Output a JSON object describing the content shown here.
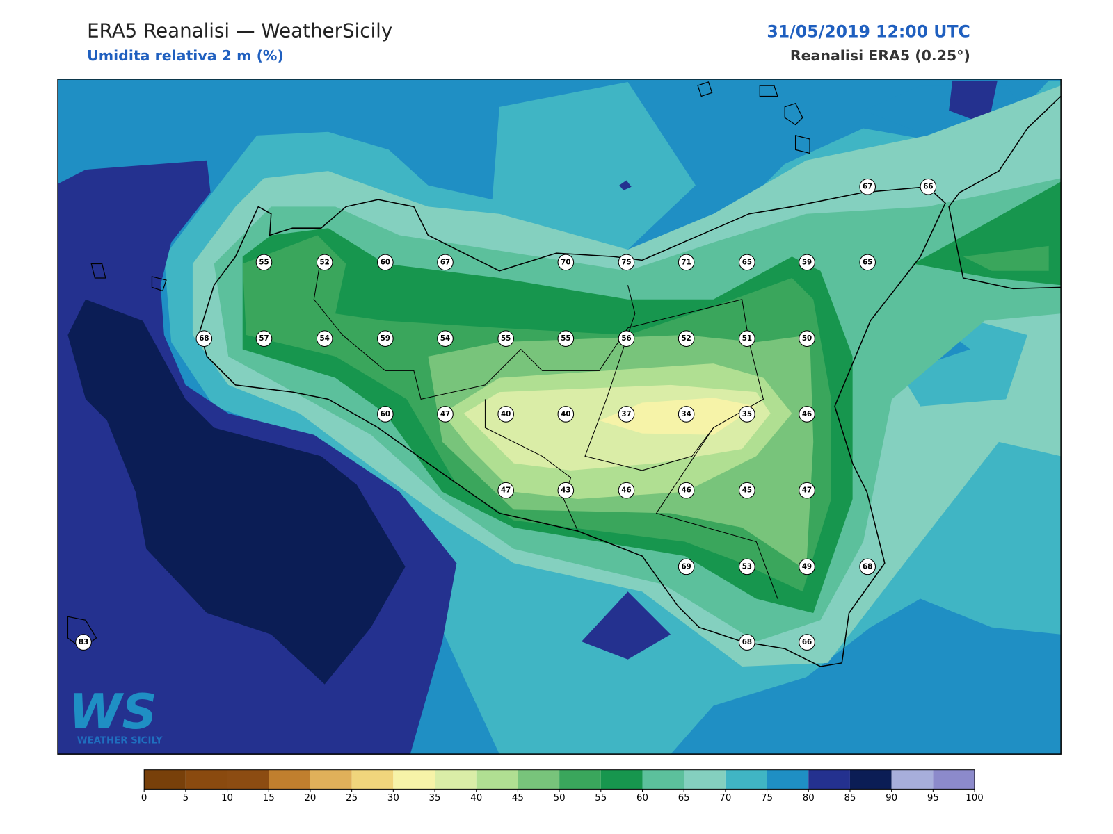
{
  "header": {
    "title": "ERA5 Reanalisi — WeatherSicily",
    "subtitle": "Umidita relativa 2 m (%)",
    "datetime": "31/05/2019 12:00 UTC",
    "source": "Reanalisi ERA5 (0.25°)"
  },
  "stations": [
    55,
    52,
    60,
    67,
    70,
    75,
    71,
    65,
    59,
    65,
    67,
    66,
    68,
    57,
    54,
    59,
    54,
    55,
    55,
    56,
    52,
    51,
    50,
    60,
    47,
    40,
    40,
    37,
    34,
    35,
    46,
    47,
    43,
    46,
    46,
    45,
    47,
    69,
    53,
    49,
    68,
    68,
    66,
    83
  ],
  "colorbar": {
    "ticks": [
      0,
      5,
      10,
      15,
      20,
      25,
      30,
      35,
      40,
      45,
      50,
      55,
      60,
      65,
      70,
      75,
      80,
      85,
      90,
      95,
      100
    ],
    "colors": [
      "#78400a",
      "#8a4a0f",
      "#8c4c12",
      "#c07f2e",
      "#e0b05a",
      "#f0d57c",
      "#f6f3a8",
      "#daeda7",
      "#b0df92",
      "#78c47b",
      "#3aa65c",
      "#17964e",
      "#5cc09c",
      "#84d0bf",
      "#40b5c4",
      "#1f8fc4",
      "#24318f",
      "#0b1d55",
      "#a7aedb",
      "#8c8acb"
    ]
  },
  "logo": {
    "mark": "WS",
    "text": "WEATHER SICILY"
  }
}
